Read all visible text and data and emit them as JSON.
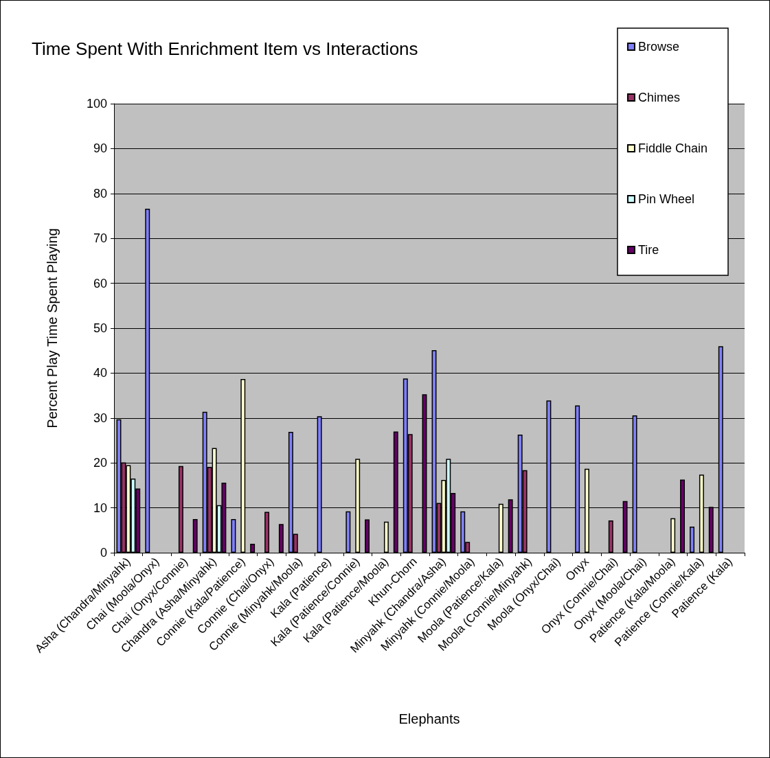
{
  "chart_data": {
    "type": "bar",
    "title": "Time Spent With Enrichment Item vs Interactions",
    "xlabel": "Elephants",
    "ylabel": "Percent Play Time Spent Playing",
    "categories": [
      "Asha (Chandra/Minyahk)",
      "Chai (Moola/Onyx)",
      "Chai (Onyx/Connie)",
      "Chandra (Asha/Minyahk)",
      "Connie (Kala/Patience)",
      "Connie (Chai/Onyx)",
      "Connie (Minyahk/Moola)",
      "Kala (Patience)",
      "Kala (Patience/Connie)",
      "Kala (Patience/Moola)",
      "Khun-Chorn",
      "Minyahk (Chandra/Asha)",
      "Minyahk (Connie/Moola)",
      "Moola (Patience/Kala)",
      "Moola (Connie/Minyahk)",
      "Moola (Onyx/Chai)",
      "Onyx",
      "Onyx (Connie/Chai)",
      "Onyx (Moola/Chai)",
      "Patience (Kala/Moola)",
      "Patience (Connie/Kala)",
      "Patience (Kala)"
    ],
    "series": [
      {
        "name": "Browse",
        "color": "#8080ff",
        "values": [
          29.7,
          76.6,
          null,
          31.4,
          7.5,
          null,
          26.9,
          30.4,
          9.2,
          null,
          38.8,
          45.1,
          9.2,
          null,
          26.3,
          33.9,
          32.8,
          null,
          30.6,
          null,
          5.8,
          46.0
        ]
      },
      {
        "name": "Chimes",
        "color": "#993366",
        "values": [
          20.1,
          null,
          19.3,
          19.1,
          null,
          9.1,
          4.2,
          null,
          null,
          null,
          26.4,
          11.1,
          2.4,
          null,
          18.4,
          null,
          null,
          7.2,
          null,
          null,
          null,
          null
        ]
      },
      {
        "name": "Fiddle Chain",
        "color": "#ffffcc",
        "values": [
          19.5,
          null,
          null,
          23.3,
          38.7,
          null,
          null,
          null,
          20.9,
          6.9,
          null,
          16.2,
          null,
          10.9,
          null,
          null,
          18.7,
          null,
          null,
          7.7,
          17.4,
          null
        ]
      },
      {
        "name": "Pin Wheel",
        "color": "#ccffff",
        "values": [
          16.5,
          null,
          null,
          10.6,
          null,
          null,
          null,
          null,
          null,
          null,
          null,
          20.9,
          null,
          null,
          null,
          null,
          null,
          null,
          null,
          null,
          null,
          null
        ]
      },
      {
        "name": "Tire",
        "color": "#660066",
        "values": [
          14.3,
          null,
          7.5,
          15.6,
          2.0,
          6.4,
          null,
          null,
          7.4,
          27.0,
          35.3,
          13.3,
          null,
          11.9,
          null,
          null,
          null,
          11.5,
          null,
          16.3,
          10.2,
          null
        ]
      }
    ],
    "ylim": [
      0,
      100
    ],
    "yticks": [
      0,
      10,
      20,
      30,
      40,
      50,
      60,
      70,
      80,
      90,
      100
    ],
    "grid": "y",
    "legend": "top right"
  }
}
